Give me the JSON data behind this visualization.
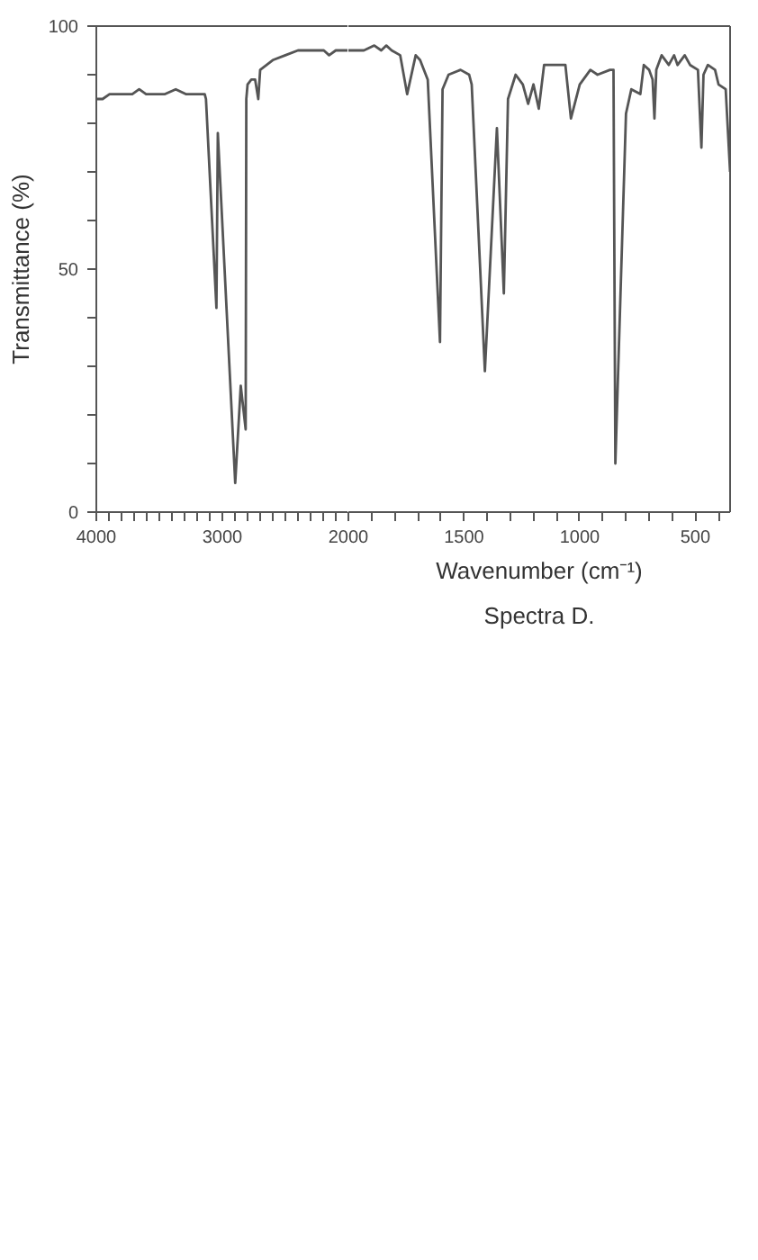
{
  "chart_data": [
    {
      "type": "line",
      "ylabel": "Transmittance (%)",
      "color": "#555555",
      "xlim": [
        4000,
        2000
      ],
      "ylim": [
        0,
        100
      ],
      "xticks": [
        4000,
        {
          "value": 3900,
          "label": null
        },
        {
          "value": 3800,
          "label": null
        },
        {
          "value": 3700,
          "label": null
        },
        {
          "value": 3600,
          "label": null
        },
        {
          "value": 3500,
          "label": null
        },
        {
          "value": 3400,
          "label": null
        },
        {
          "value": 3300,
          "label": null
        },
        {
          "value": 3200,
          "label": null
        },
        {
          "value": 3100,
          "label": null
        },
        3000,
        {
          "value": 2900,
          "label": null
        },
        {
          "value": 2800,
          "label": null
        },
        {
          "value": 2700,
          "label": null
        },
        {
          "value": 2600,
          "label": null
        },
        {
          "value": 2500,
          "label": null
        },
        {
          "value": 2400,
          "label": null
        },
        {
          "value": 2300,
          "label": null
        },
        {
          "value": 2200,
          "label": null
        },
        {
          "value": 2100,
          "label": null
        }
      ],
      "yticks": [
        0,
        {
          "value": 10,
          "label": null
        },
        {
          "value": 20,
          "label": null
        },
        {
          "value": 30,
          "label": null
        },
        {
          "value": 40,
          "label": null
        },
        50,
        {
          "value": 60,
          "label": null
        },
        {
          "value": 70,
          "label": null
        },
        {
          "value": 80,
          "label": null
        },
        {
          "value": 90,
          "label": null
        },
        100
      ],
      "x": [
        4000,
        3950,
        3895,
        3840,
        3785,
        3715,
        3660,
        3605,
        3535,
        3455,
        3370,
        3290,
        3220,
        3140,
        3130,
        3047,
        3036,
        2898,
        2854,
        2815,
        2810,
        2800,
        2770,
        2740,
        2715,
        2700,
        2600,
        2500,
        2400,
        2300,
        2195,
        2153,
        2100,
        2042,
        2000
      ],
      "values": [
        85,
        85,
        86,
        86,
        86,
        86,
        87,
        86,
        86,
        86,
        87,
        86,
        86,
        86,
        85,
        42,
        78,
        6,
        26,
        17,
        85,
        88,
        89,
        89,
        85,
        91,
        93,
        94,
        95,
        95,
        95,
        94,
        95,
        95,
        95
      ]
    },
    {
      "type": "line",
      "xlabel": "Wavenumber (cm⁻¹)",
      "annotations": [
        "Spectra D."
      ],
      "color": "#555555",
      "xlim": [
        2000,
        350
      ],
      "ylim": [
        0,
        100
      ],
      "tick_labels": "x",
      "xticks": [
        2000,
        {
          "value": 1900,
          "label": null
        },
        {
          "value": 1800,
          "label": null
        },
        {
          "value": 1700,
          "label": null
        },
        {
          "value": 1600,
          "label": null
        },
        1500,
        {
          "value": 1400,
          "label": null
        },
        {
          "value": 1300,
          "label": null
        },
        {
          "value": 1200,
          "label": null
        },
        {
          "value": 1100,
          "label": null
        },
        1000,
        {
          "value": 900,
          "label": null
        },
        {
          "value": 800,
          "label": null
        },
        {
          "value": 700,
          "label": null
        },
        {
          "value": 600,
          "label": null
        },
        500,
        {
          "value": 400,
          "label": null
        }
      ],
      "x": [
        2000,
        1933,
        1888,
        1858,
        1836,
        1813,
        1776,
        1746,
        1709,
        1690,
        1657,
        1604,
        1593,
        1567,
        1515,
        1478,
        1467,
        1410,
        1358,
        1328,
        1310,
        1277,
        1246,
        1223,
        1200,
        1177,
        1154,
        1062,
        1038,
        1000,
        954,
        923,
        869,
        854,
        846,
        800,
        777,
        738,
        723,
        700,
        685,
        677,
        669,
        646,
        615,
        592,
        577,
        546,
        523,
        489,
        474,
        465,
        446,
        415,
        400,
        369,
        350
      ],
      "values": [
        95,
        95,
        96,
        95,
        96,
        95,
        94,
        86,
        94,
        93,
        89,
        35,
        87,
        90,
        91,
        90,
        88,
        29,
        79,
        45,
        85,
        90,
        88,
        84,
        88,
        83,
        92,
        92,
        81,
        88,
        91,
        90,
        91,
        91,
        10,
        82,
        87,
        86,
        92,
        91,
        89,
        81,
        91,
        94,
        92,
        94,
        92,
        94,
        92,
        91,
        75,
        90,
        92,
        91,
        88,
        87,
        70
      ]
    }
  ]
}
